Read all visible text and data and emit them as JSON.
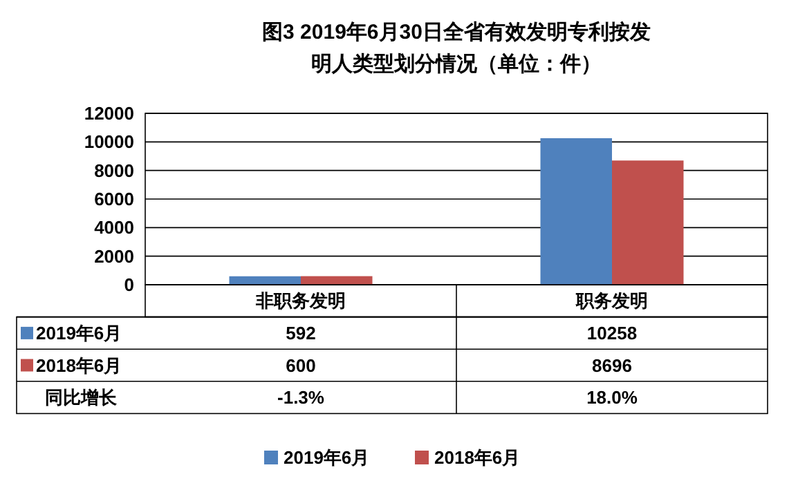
{
  "chart_data": {
    "type": "bar",
    "title": "图3 2019年6月30日全省有效发明专利按发明人类型划分情况（单位：件）",
    "categories": [
      "非职务发明",
      "职务发明"
    ],
    "series": [
      {
        "name": "2019年6月",
        "color": "#4f81bd",
        "values": [
          592,
          10258
        ]
      },
      {
        "name": "2018年6月",
        "color": "#c0504d",
        "values": [
          600,
          8696
        ]
      }
    ],
    "ylim": [
      0,
      12000
    ],
    "yticks": [
      0,
      2000,
      4000,
      6000,
      8000,
      10000,
      12000
    ],
    "grid": "y",
    "legend": "bottom",
    "data_labels": true,
    "annotations": [
      "同比增长",
      "-1.3%",
      "18.0%"
    ]
  }
}
